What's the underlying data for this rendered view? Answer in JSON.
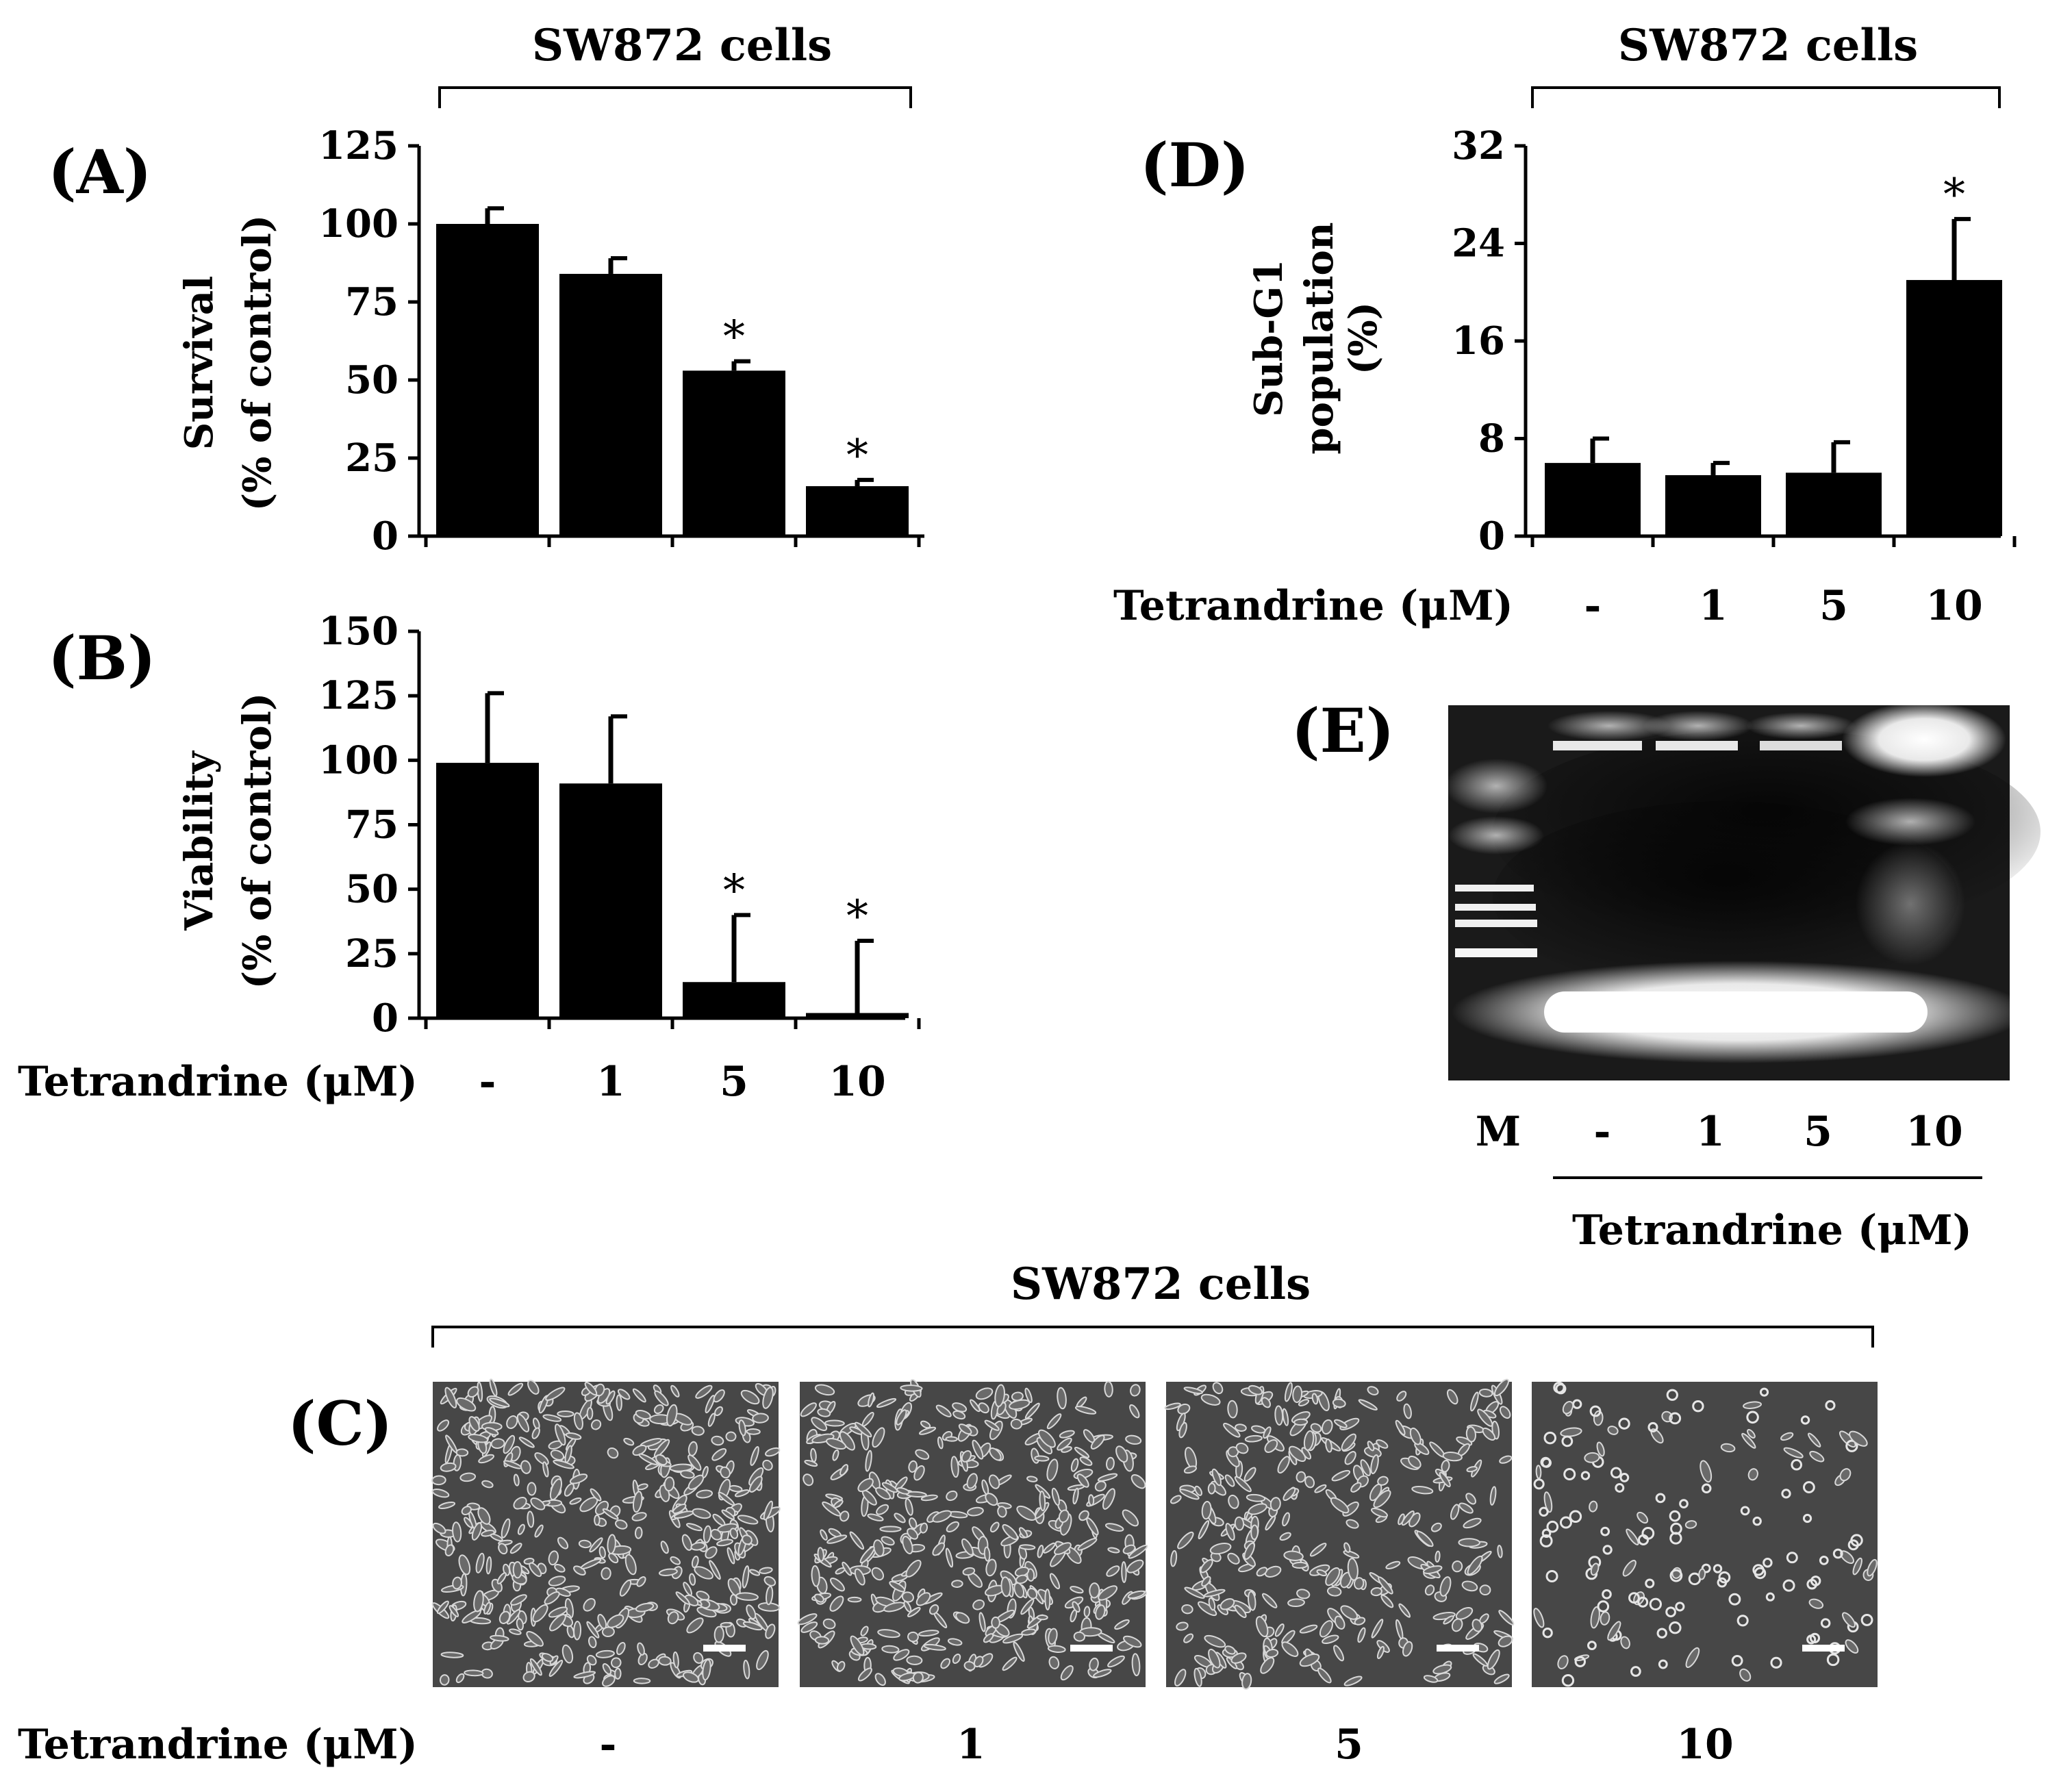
{
  "figure": {
    "cells_label": "SW872 cells",
    "treatment_label": "Tetrandrine (μM)"
  },
  "colors": {
    "bar": "#000000",
    "axis": "#000000",
    "gel_bg": "#1a1a1a",
    "micro_bg": "#474747"
  },
  "chart_data": [
    {
      "panel": "(A)",
      "type": "bar",
      "header": "SW872 cells",
      "categories": [
        "-",
        "1",
        "5",
        "10"
      ],
      "values": [
        100,
        84,
        53,
        16
      ],
      "errors": [
        5,
        5,
        3,
        2
      ],
      "significance": [
        "",
        "",
        "*",
        "*"
      ],
      "ylabel": "Survival",
      "ylabel2": "(% of control)",
      "ylim": [
        0,
        125
      ],
      "yticks": [
        "0",
        "25",
        "50",
        "75",
        "100",
        "125"
      ],
      "xlabel": ""
    },
    {
      "panel": "(B)",
      "type": "bar",
      "categories": [
        "-",
        "1",
        "5",
        "10"
      ],
      "values": [
        99,
        91,
        14,
        2
      ],
      "errors": [
        27,
        26,
        26,
        28
      ],
      "significance": [
        "",
        "",
        "*",
        "*"
      ],
      "ylabel": "Viability",
      "ylabel2": "(% of control)",
      "ylim": [
        0,
        150
      ],
      "yticks": [
        "0",
        "25",
        "50",
        "75",
        "100",
        "125",
        "150"
      ],
      "xlabel": "Tetrandrine (μM)"
    },
    {
      "panel": "(D)",
      "type": "bar",
      "header": "SW872 cells",
      "categories": [
        "-",
        "1",
        "5",
        "10"
      ],
      "values": [
        6,
        5,
        5.2,
        21
      ],
      "errors": [
        2,
        1,
        2.5,
        5
      ],
      "significance": [
        "",
        "",
        "",
        "*"
      ],
      "ylabel": "Sub-G1",
      "ylabel2": "population",
      "ylabel3": "(%)",
      "ylim": [
        0,
        32
      ],
      "yticks": [
        "0",
        "8",
        "16",
        "24",
        "32"
      ],
      "xlabel": "Tetrandrine (μM)"
    }
  ],
  "panel_e": {
    "label": "(E)",
    "lanes": [
      "M",
      "-",
      "1",
      "5",
      "10"
    ],
    "xlabel": "Tetrandrine (μM)"
  },
  "panel_c": {
    "label": "(C)",
    "header": "SW872 cells",
    "conditions": [
      "-",
      "1",
      "5",
      "10"
    ],
    "xlabel": "Tetrandrine (μM)",
    "cell_density": [
      1.0,
      0.9,
      0.75,
      0.35
    ]
  }
}
